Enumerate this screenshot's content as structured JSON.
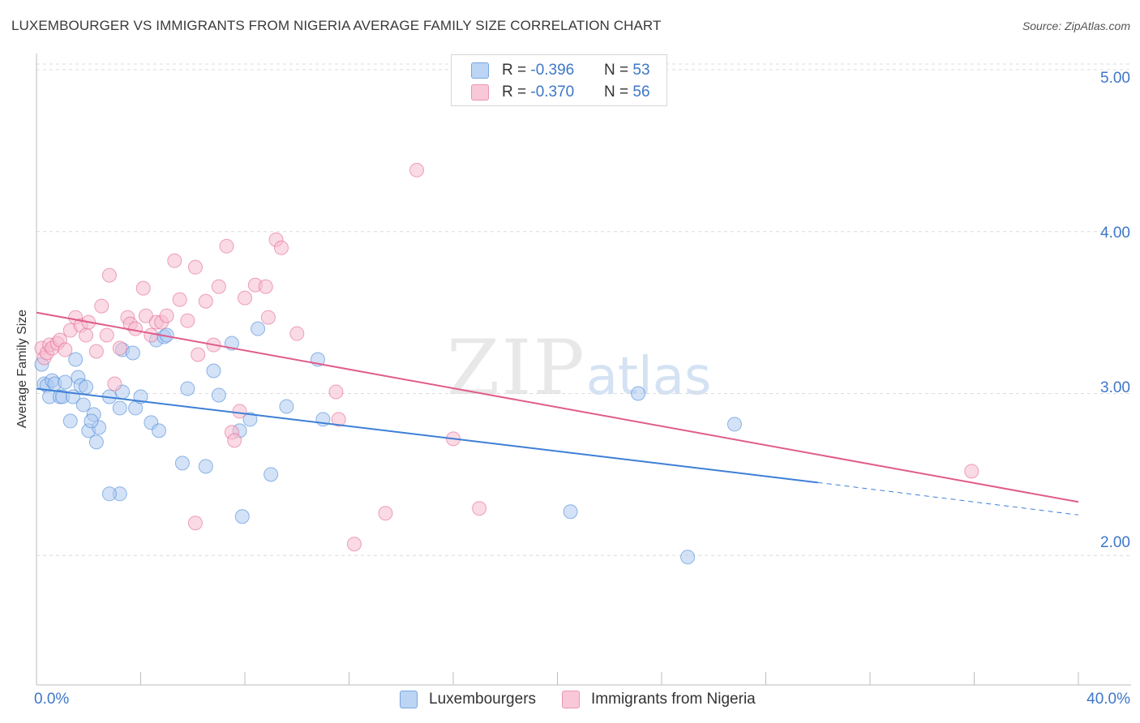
{
  "header": {
    "title": "LUXEMBOURGER VS IMMIGRANTS FROM NIGERIA AVERAGE FAMILY SIZE CORRELATION CHART",
    "source": "Source: ZipAtlas.com"
  },
  "watermark": {
    "zip": "ZIP",
    "atlas": "atlas"
  },
  "legend_top": [
    {
      "r_label": "R = ",
      "r_value": "-0.396",
      "n_label": "N = ",
      "n_value": "53"
    },
    {
      "r_label": "R = ",
      "r_value": "-0.370",
      "n_label": "N = ",
      "n_value": "56"
    }
  ],
  "chart_data": {
    "type": "scatter",
    "title": "LUXEMBOURGER VS IMMIGRANTS FROM NIGERIA AVERAGE FAMILY SIZE CORRELATION CHART",
    "xlabel": "",
    "ylabel": "Average Family Size",
    "xlim": [
      0,
      40
    ],
    "ylim": [
      1.2,
      5.1
    ],
    "x_tick_labels": [
      "0.0%",
      "40.0%"
    ],
    "y_ticks": [
      2.0,
      3.0,
      4.0,
      5.0
    ],
    "y_tick_labels": [
      "2.00",
      "3.00",
      "4.00",
      "5.00"
    ],
    "grid": "horizontal dashed",
    "legend_position": "bottom-center",
    "series": [
      {
        "name": "Luxembourgers",
        "color": "#3d7fd6",
        "fill": "#aecbf0",
        "r": -0.396,
        "n": 53,
        "trend": {
          "x0": 0.0,
          "y0": 3.03,
          "x1": 30.0,
          "y1": 2.45,
          "dashed_to_x": 40.0,
          "dashed_to_y": 2.25
        },
        "points": [
          [
            0.2,
            3.18
          ],
          [
            0.3,
            3.06
          ],
          [
            0.4,
            3.05
          ],
          [
            0.5,
            2.98
          ],
          [
            0.6,
            3.08
          ],
          [
            0.7,
            3.06
          ],
          [
            0.9,
            2.98
          ],
          [
            1.0,
            2.98
          ],
          [
            1.1,
            3.07
          ],
          [
            1.3,
            2.83
          ],
          [
            1.4,
            2.98
          ],
          [
            1.5,
            3.21
          ],
          [
            1.6,
            3.1
          ],
          [
            1.7,
            3.05
          ],
          [
            1.8,
            2.93
          ],
          [
            1.9,
            3.04
          ],
          [
            2.0,
            2.77
          ],
          [
            2.2,
            2.87
          ],
          [
            2.4,
            2.79
          ],
          [
            2.8,
            2.98
          ],
          [
            3.3,
            3.27
          ],
          [
            3.3,
            3.01
          ],
          [
            3.2,
            2.91
          ],
          [
            3.7,
            3.25
          ],
          [
            3.8,
            2.91
          ],
          [
            4.0,
            2.98
          ],
          [
            4.4,
            2.82
          ],
          [
            4.6,
            3.33
          ],
          [
            4.7,
            2.77
          ],
          [
            4.9,
            3.35
          ],
          [
            5.0,
            3.36
          ],
          [
            5.6,
            2.57
          ],
          [
            5.8,
            3.03
          ],
          [
            6.5,
            2.55
          ],
          [
            6.8,
            3.14
          ],
          [
            7.0,
            2.99
          ],
          [
            7.5,
            3.31
          ],
          [
            7.8,
            2.77
          ],
          [
            8.2,
            2.84
          ],
          [
            8.5,
            3.4
          ],
          [
            9.0,
            2.5
          ],
          [
            9.6,
            2.92
          ],
          [
            10.8,
            3.21
          ],
          [
            11.0,
            2.84
          ],
          [
            3.2,
            2.38
          ],
          [
            2.8,
            2.38
          ],
          [
            2.1,
            2.83
          ],
          [
            7.9,
            2.24
          ],
          [
            20.5,
            2.27
          ],
          [
            23.1,
            3.0
          ],
          [
            25.0,
            1.99
          ],
          [
            26.8,
            2.81
          ],
          [
            2.3,
            2.7
          ]
        ]
      },
      {
        "name": "Immigrants from Nigeria",
        "color": "#e05c8a",
        "fill": "#f6bccf",
        "r": -0.37,
        "n": 56,
        "trend": {
          "x0": 0.0,
          "y0": 3.5,
          "x1": 40.0,
          "y1": 2.33
        },
        "points": [
          [
            0.2,
            3.28
          ],
          [
            0.3,
            3.22
          ],
          [
            0.4,
            3.25
          ],
          [
            0.5,
            3.3
          ],
          [
            0.6,
            3.28
          ],
          [
            0.8,
            3.31
          ],
          [
            0.9,
            3.33
          ],
          [
            1.1,
            3.27
          ],
          [
            1.3,
            3.39
          ],
          [
            1.5,
            3.47
          ],
          [
            1.7,
            3.42
          ],
          [
            1.9,
            3.36
          ],
          [
            2.0,
            3.44
          ],
          [
            2.3,
            3.26
          ],
          [
            2.5,
            3.54
          ],
          [
            2.7,
            3.36
          ],
          [
            2.8,
            3.73
          ],
          [
            3.0,
            3.06
          ],
          [
            3.2,
            3.28
          ],
          [
            3.5,
            3.47
          ],
          [
            3.6,
            3.43
          ],
          [
            3.8,
            3.4
          ],
          [
            4.1,
            3.65
          ],
          [
            4.2,
            3.48
          ],
          [
            4.4,
            3.36
          ],
          [
            4.6,
            3.44
          ],
          [
            4.8,
            3.44
          ],
          [
            5.0,
            3.48
          ],
          [
            5.3,
            3.82
          ],
          [
            5.5,
            3.58
          ],
          [
            5.8,
            3.45
          ],
          [
            6.1,
            3.78
          ],
          [
            6.2,
            3.24
          ],
          [
            6.5,
            3.57
          ],
          [
            6.8,
            3.3
          ],
          [
            7.0,
            3.66
          ],
          [
            7.3,
            3.91
          ],
          [
            7.5,
            2.76
          ],
          [
            7.6,
            2.71
          ],
          [
            7.8,
            2.89
          ],
          [
            8.0,
            3.59
          ],
          [
            8.4,
            3.67
          ],
          [
            8.8,
            3.66
          ],
          [
            8.9,
            3.47
          ],
          [
            9.2,
            3.95
          ],
          [
            9.4,
            3.9
          ],
          [
            10.0,
            3.37
          ],
          [
            11.5,
            3.01
          ],
          [
            11.6,
            2.84
          ],
          [
            12.2,
            2.07
          ],
          [
            13.4,
            2.26
          ],
          [
            14.6,
            4.38
          ],
          [
            16.0,
            2.72
          ],
          [
            17.0,
            2.29
          ],
          [
            6.1,
            2.2
          ],
          [
            35.9,
            2.52
          ]
        ]
      }
    ]
  }
}
